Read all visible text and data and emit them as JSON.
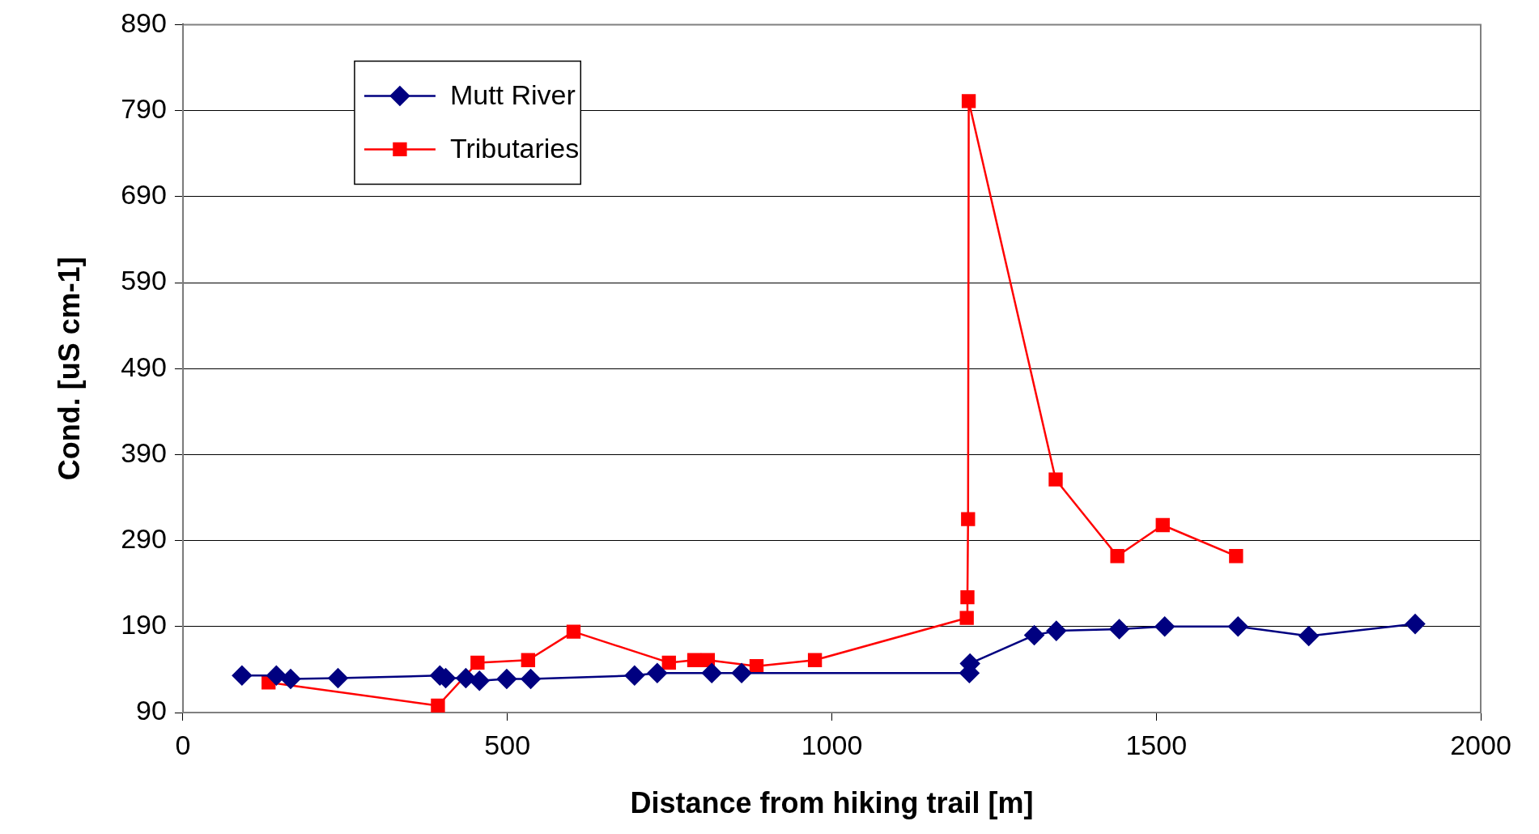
{
  "chart_data": {
    "type": "line",
    "xlabel": "Distance from hiking trail [m]",
    "ylabel": "Cond. [uS cm-1]",
    "xlim": [
      0,
      2000
    ],
    "xticks": [
      0,
      500,
      1000,
      1500,
      2000
    ],
    "ylim": [
      90,
      890
    ],
    "yticks": [
      90,
      190,
      290,
      390,
      490,
      590,
      690,
      790,
      890
    ],
    "grid": "y",
    "legend": "top left",
    "line_style": "solid",
    "series": [
      {
        "name": "Mutt River",
        "color": "#000080",
        "marker": "diamond",
        "x": [
          91,
          144,
          166,
          239,
          396,
          405,
          436,
          457,
          499,
          536,
          696,
          731,
          815,
          861,
          1212,
          1213,
          1312,
          1346,
          1443,
          1513,
          1626,
          1735,
          1899
        ],
        "values": [
          133,
          133,
          129,
          130,
          133,
          130,
          130,
          127,
          129,
          129,
          133,
          136,
          136,
          136,
          136,
          147,
          180,
          185,
          187,
          190,
          190,
          179,
          193
        ]
      },
      {
        "name": "Tributaries",
        "color": "#ff0000",
        "marker": "square",
        "x": [
          132,
          393,
          454,
          532,
          602,
          749,
          788,
          809,
          884,
          974,
          1208,
          1209,
          1210,
          1211,
          1345,
          1440,
          1510,
          1623
        ],
        "values": [
          125,
          98,
          148,
          151,
          184,
          148,
          151,
          151,
          144,
          151,
          200,
          224,
          315,
          801,
          361,
          272,
          308,
          272
        ]
      }
    ]
  }
}
